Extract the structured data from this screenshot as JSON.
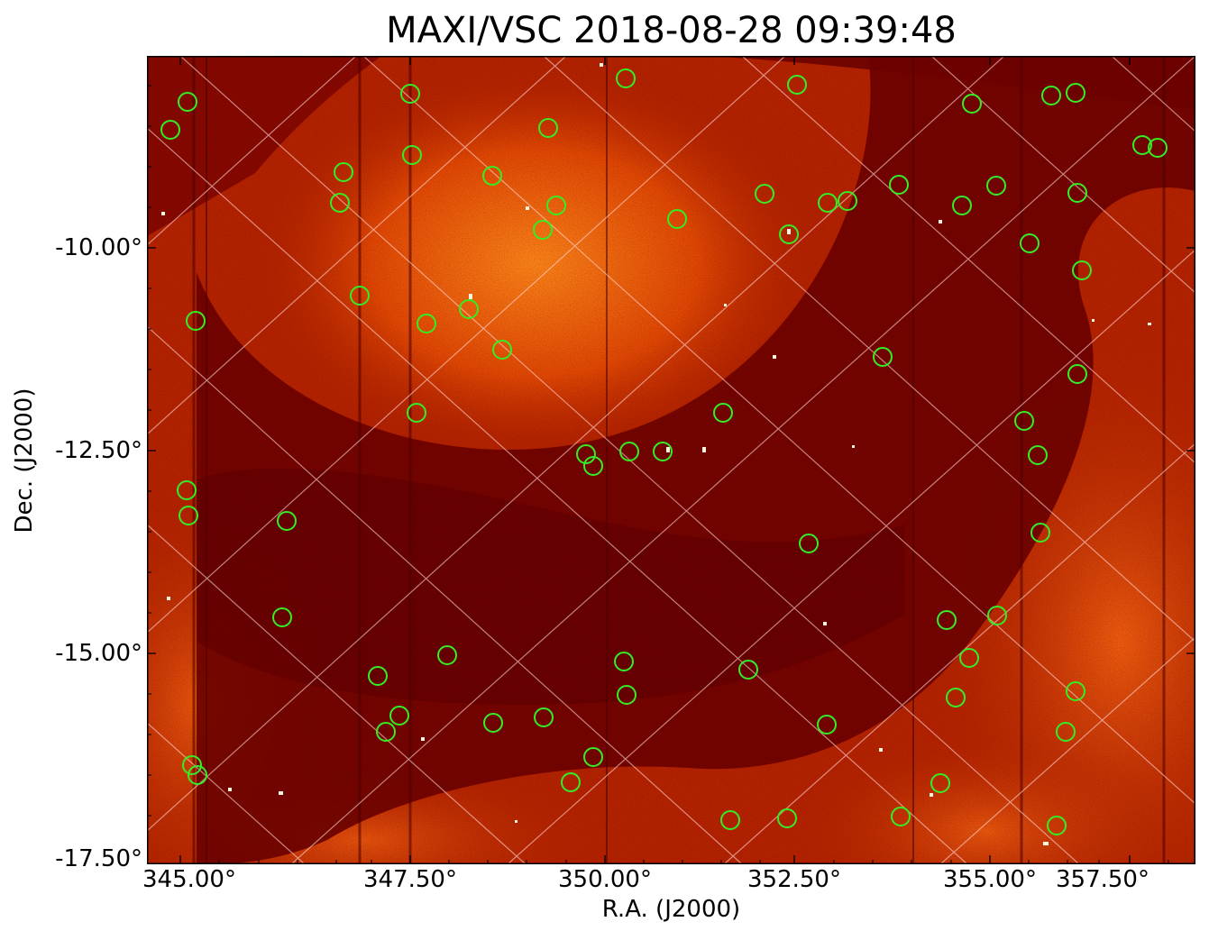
{
  "title": "MAXI/VSC 2018-08-28 09:39:48",
  "x_axis": {
    "label": "R.A. (J2000)",
    "ticks": [
      "345.00°",
      "347.50°",
      "350.00°",
      "352.50°",
      "355.00°",
      "357.50°"
    ]
  },
  "y_axis": {
    "label": "Dec. (J2000)",
    "ticks": [
      "-10.00°",
      "-12.50°",
      "-15.00°",
      "-17.50°"
    ]
  },
  "colors": {
    "background_dark": "#5e0000",
    "emission_mid": "#b52500",
    "emission_bright": "#ff7a10",
    "source_marker": "#33ee22",
    "grid": "#ffd8d8"
  }
}
